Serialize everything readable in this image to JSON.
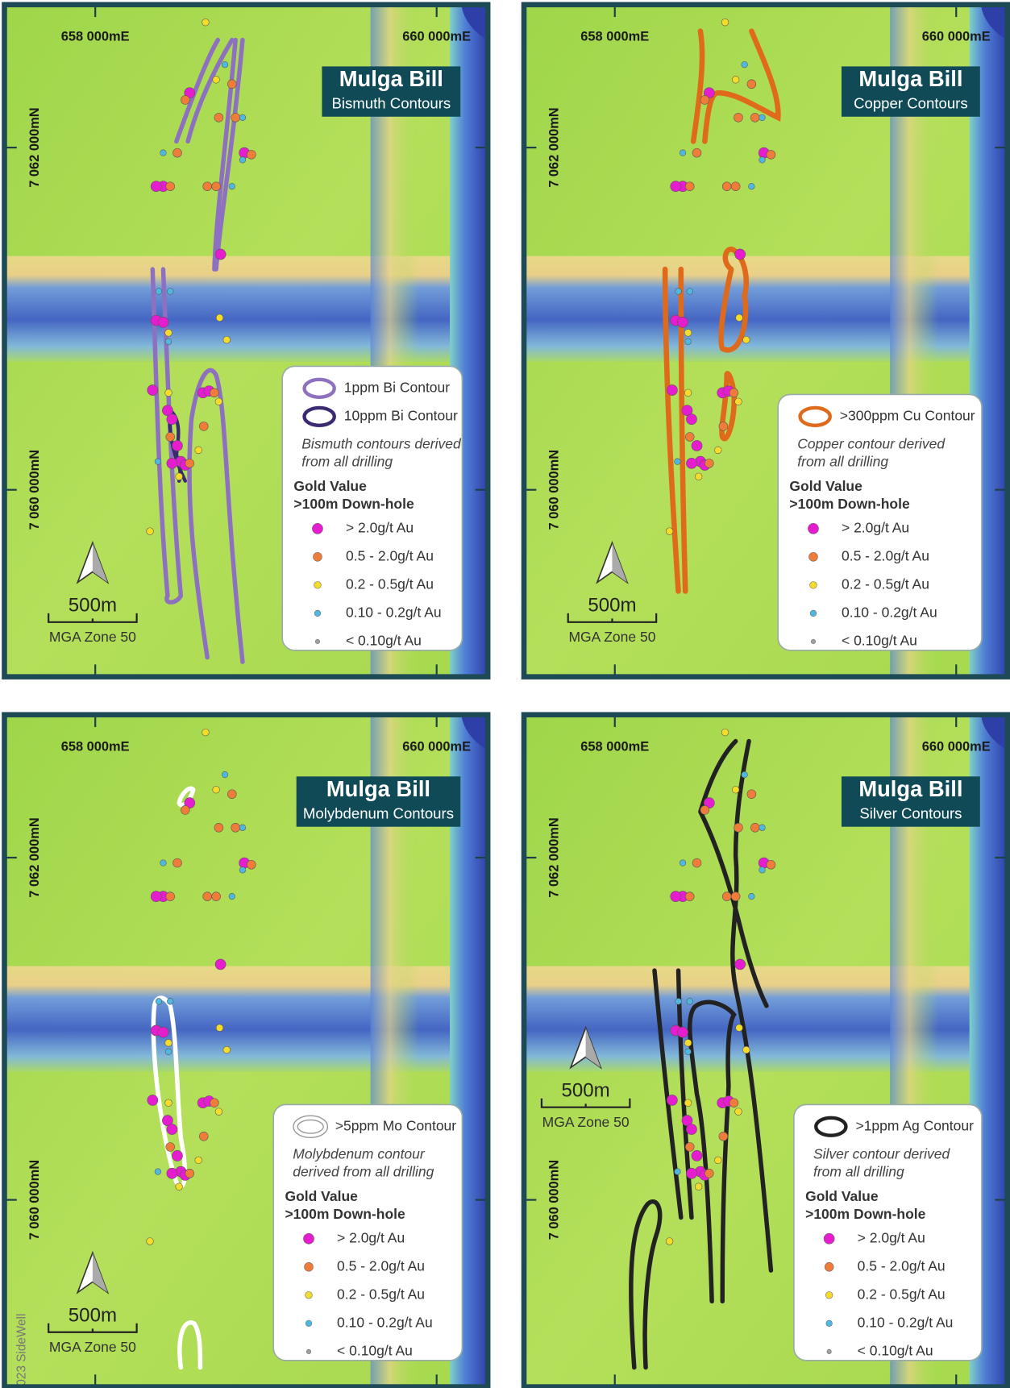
{
  "panels": [
    {
      "title": "Mulga Bill",
      "subtitle": "Bismuth Contours",
      "easting": [
        "658 000mE",
        "660 000mE"
      ],
      "northing": [
        "7 062 000mN",
        "7 060 000mN"
      ],
      "contour_legend": [
        {
          "label": "1ppm Bi Contour",
          "color": "#8e70c0"
        },
        {
          "label": "10ppm Bi Contour",
          "color": "#3b2a72"
        }
      ],
      "note": [
        "Bismuth contours derived",
        "from all drilling"
      ],
      "legend_title": "Gold Value",
      "legend_subtitle": ">100m Down-hole",
      "gold_classes": [
        "> 2.0g/t Au",
        "0.5 - 2.0g/t Au",
        "0.2 - 0.5g/t Au",
        "0.10 - 0.2g/t Au",
        "< 0.10g/t Au"
      ],
      "scale": "500m",
      "zone": "MGA Zone 50"
    },
    {
      "title": "Mulga Bill",
      "subtitle": "Copper Contours",
      "easting": [
        "658 000mE",
        "660 000mE"
      ],
      "northing": [
        "7 062 000mN",
        "7 060 000mN"
      ],
      "contour_legend": [
        {
          "label": ">300ppm Cu Contour",
          "color": "#e06a1c"
        }
      ],
      "note": [
        "Copper contour derived",
        "from all drilling"
      ],
      "legend_title": "Gold Value",
      "legend_subtitle": ">100m Down-hole",
      "gold_classes": [
        "> 2.0g/t Au",
        "0.5 - 2.0g/t Au",
        "0.2 - 0.5g/t Au",
        "0.10 - 0.2g/t Au",
        "< 0.10g/t Au"
      ],
      "scale": "500m",
      "zone": "MGA Zone 50"
    },
    {
      "title": "Mulga Bill",
      "subtitle": "Molybdenum Contours",
      "easting": [
        "658 000mE",
        "660 000mE"
      ],
      "northing": [
        "7 062 000mN",
        "7 060 000mN"
      ],
      "contour_legend": [
        {
          "label": ">5ppm Mo Contour",
          "color": "#ffffff"
        }
      ],
      "note": [
        "Molybdenum contour",
        "derived from all drilling"
      ],
      "legend_title": "Gold Value",
      "legend_subtitle": ">100m Down-hole",
      "gold_classes": [
        "> 2.0g/t Au",
        "0.5 - 2.0g/t Au",
        "0.2 - 0.5g/t Au",
        "0.10 - 0.2g/t Au",
        "< 0.10g/t Au"
      ],
      "scale": "500m",
      "zone": "MGA Zone 50",
      "credit": "023 SideWell"
    },
    {
      "title": "Mulga Bill",
      "subtitle": "Silver Contours",
      "easting": [
        "658 000mE",
        "660 000mE"
      ],
      "northing": [
        "7 062 000mN",
        "7 060 000mN"
      ],
      "contour_legend": [
        {
          "label": ">1ppm Ag Contour",
          "color": "#222222"
        }
      ],
      "note": [
        "Silver contour derived",
        "from all drilling"
      ],
      "legend_title": "Gold Value",
      "legend_subtitle": ">100m Down-hole",
      "gold_classes": [
        "> 2.0g/t Au",
        "0.5 - 2.0g/t Au",
        "0.2 - 0.5g/t Au",
        "0.10 - 0.2g/t Au",
        "< 0.10g/t Au"
      ],
      "scale": "500m",
      "zone": "MGA Zone 50"
    }
  ]
}
